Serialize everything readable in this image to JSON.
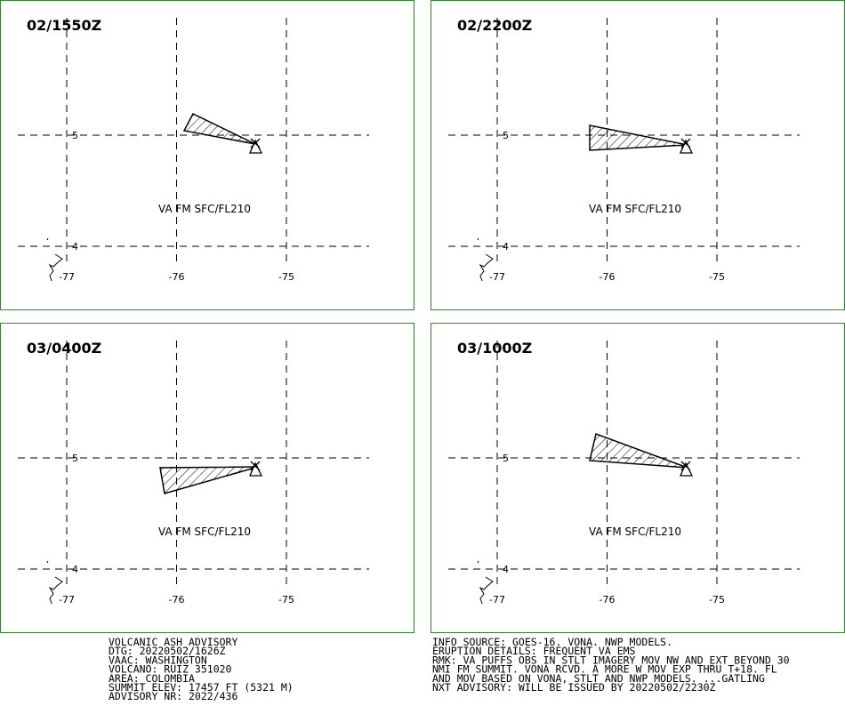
{
  "panels": [
    {
      "time": "02/1550Z",
      "label": "VA FM SFC/FL210"
    },
    {
      "time": "02/2200Z",
      "label": "VA FM SFC/FL210"
    },
    {
      "time": "03/0400Z",
      "label": "VA FM SFC/FL210"
    },
    {
      "time": "03/1000Z",
      "label": "VA FM SFC/FL210"
    }
  ],
  "lon_ticks": [
    -77,
    -76,
    -75
  ],
  "lat_ticks": [
    5,
    4
  ],
  "advisory_left": [
    "VOLCANIC ASH ADVISORY",
    "DTG: 20220502/1626Z",
    "VAAC: WASHINGTON",
    "VOLCANO: RUIZ 351020",
    "AREA: COLOMBIA",
    "SUMMIT ELEV: 17457 FT (5321 M)",
    "ADVISORY NR: 2022/436"
  ],
  "advisory_right": [
    "INFO SOURCE: GOES-16. VONA. NWP MODELS.",
    "ERUPTION DETAILS: FREQUENT VA EMS",
    "RMK: VA PUFFS OBS IN STLT IMAGERY MOV NW AND EXT BEYOND 30",
    "NMI FM SUMMIT. VONA RCVD. A MORE W MOV EXP THRU T+18. FL",
    "AND MOV BASED ON VONA, STLT AND NWP MODELS. ...GATLING",
    "NXT ADVISORY: WILL BE ISSUED BY 20220502/2230Z"
  ]
}
